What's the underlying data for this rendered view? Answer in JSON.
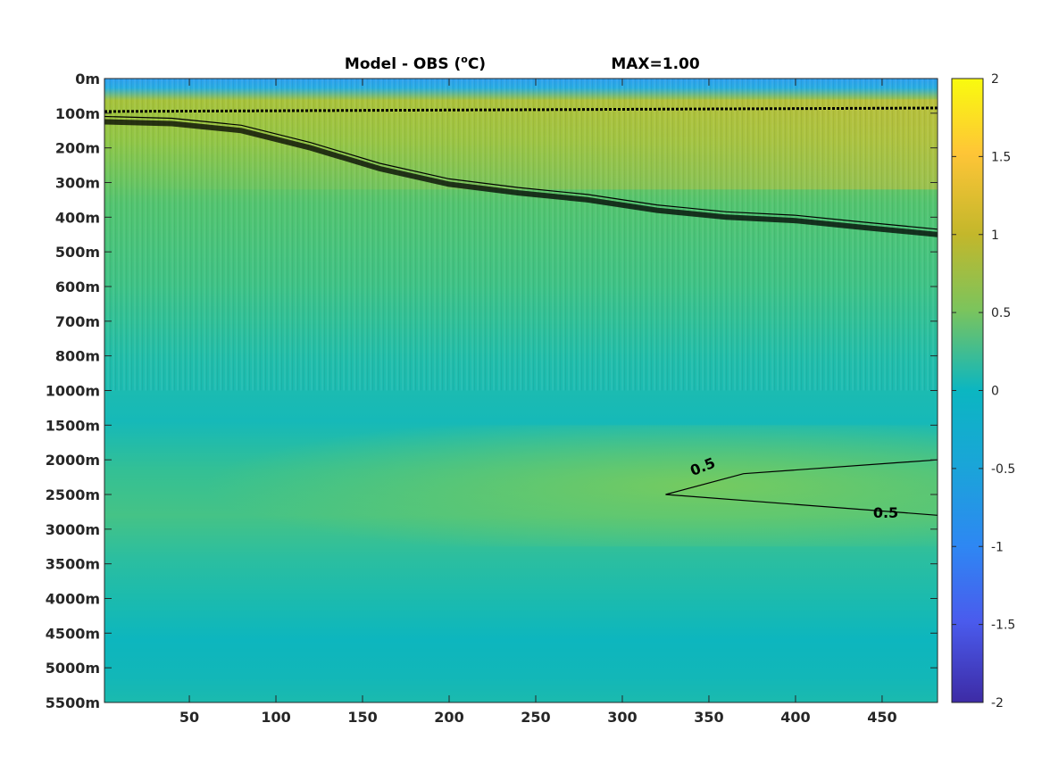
{
  "chart_data": {
    "type": "heatmap",
    "title_left": "Model - OBS (",
    "title_unit_sup": "o",
    "title_unit_after": "C)",
    "title_max": "MAX=1.00",
    "x_ticks": [
      50,
      100,
      150,
      200,
      250,
      300,
      350,
      400,
      450
    ],
    "x_range": [
      1,
      482
    ],
    "y_ticks": [
      "0m",
      "100m",
      "200m",
      "300m",
      "400m",
      "500m",
      "600m",
      "700m",
      "800m",
      "1000m",
      "1500m",
      "2000m",
      "2500m",
      "3000m",
      "3500m",
      "4000m",
      "4500m",
      "5000m",
      "5500m"
    ],
    "colorbar": {
      "ticks": [
        "2",
        "1.5",
        "1",
        "0.5",
        "0",
        "-0.5",
        "-1",
        "-1.5",
        "-2"
      ],
      "range": [
        -2,
        2
      ],
      "colormap": "parula"
    },
    "contour_label": "0.5",
    "contour_upper_x": [
      1,
      40,
      80,
      120,
      160,
      200,
      240,
      280,
      320,
      360,
      400,
      440,
      482
    ],
    "contour_upper_y": [
      1.25,
      1.3,
      1.5,
      2.0,
      2.6,
      3.05,
      3.3,
      3.5,
      3.8,
      4.0,
      4.1,
      4.3,
      4.5
    ],
    "contour_lower_box": {
      "x": [
        325,
        482
      ],
      "y_top": [
        11.5,
        11.0
      ],
      "y_bottom": [
        12.0,
        12.6
      ]
    },
    "colors": {
      "background_mid": "#2bbfa8",
      "upper_band": "#9cc33a",
      "deep_core": "#14b9bf",
      "surface": "#2d9ee8",
      "anomaly": "#6fcb5f"
    }
  }
}
